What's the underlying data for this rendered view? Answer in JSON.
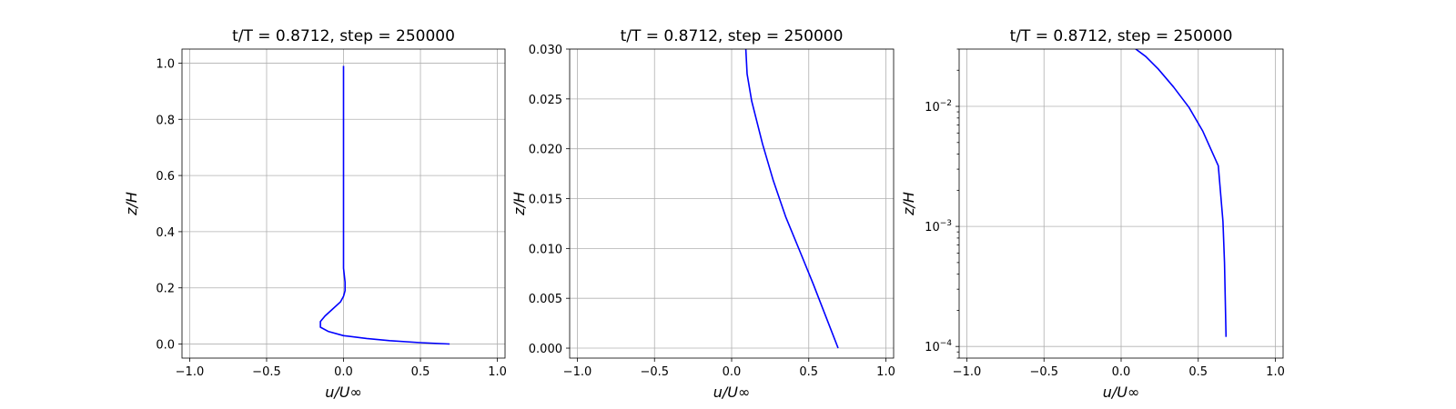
{
  "chart_data": [
    {
      "type": "line",
      "title": "t/T = 0.8712, step = 250000",
      "xlabel": "u/U∞",
      "ylabel": "z/H",
      "xlim": [
        -1.05,
        1.05
      ],
      "ylim": [
        -0.05,
        1.05
      ],
      "yscale": "linear",
      "xticks": [
        -1.0,
        -0.5,
        0.0,
        0.5,
        1.0
      ],
      "xtick_labels": [
        "−1.0",
        "−0.5",
        "0.0",
        "0.5",
        "1.0"
      ],
      "yticks": [
        0.0,
        0.2,
        0.4,
        0.6,
        0.8,
        1.0
      ],
      "ytick_labels": [
        "0.0",
        "0.2",
        "0.4",
        "0.6",
        "0.8",
        "1.0"
      ],
      "grid": true,
      "series": [
        {
          "color": "#0000ff",
          "x": [
            0.69,
            0.5,
            0.3,
            0.15,
            0.0,
            -0.1,
            -0.15,
            -0.15,
            -0.12,
            -0.07,
            -0.02,
            0.0,
            0.01,
            0.01,
            0.0,
            0.0,
            0.0,
            0.0
          ],
          "y": [
            0.0,
            0.005,
            0.012,
            0.02,
            0.03,
            0.045,
            0.06,
            0.08,
            0.1,
            0.125,
            0.15,
            0.17,
            0.19,
            0.22,
            0.27,
            0.35,
            0.6,
            0.99
          ]
        }
      ]
    },
    {
      "type": "line",
      "title": "t/T = 0.8712, step = 250000",
      "xlabel": "u/U∞",
      "ylabel": "z/H",
      "xlim": [
        -1.05,
        1.05
      ],
      "ylim": [
        -0.001,
        0.03
      ],
      "yscale": "linear",
      "xticks": [
        -1.0,
        -0.5,
        0.0,
        0.5,
        1.0
      ],
      "xtick_labels": [
        "−1.0",
        "−0.5",
        "0.0",
        "0.5",
        "1.0"
      ],
      "yticks": [
        0.0,
        0.005,
        0.01,
        0.015,
        0.02,
        0.025,
        0.03
      ],
      "ytick_labels": [
        "0.000",
        "0.005",
        "0.010",
        "0.015",
        "0.020",
        "0.025",
        "0.030"
      ],
      "grid": true,
      "series": [
        {
          "color": "#0000ff",
          "x": [
            0.69,
            0.61,
            0.53,
            0.44,
            0.35,
            0.27,
            0.2,
            0.13,
            0.1,
            0.09
          ],
          "y": [
            0.0,
            0.0032,
            0.0064,
            0.0098,
            0.0132,
            0.0168,
            0.0205,
            0.0248,
            0.0275,
            0.0305
          ]
        }
      ]
    },
    {
      "type": "line",
      "title": "t/T = 0.8712, step = 250000",
      "xlabel": "u/U∞",
      "ylabel": "z/H",
      "xlim": [
        -1.05,
        1.05
      ],
      "ylim": [
        8e-05,
        0.03
      ],
      "yscale": "log",
      "xticks": [
        -1.0,
        -0.5,
        0.0,
        0.5,
        1.0
      ],
      "xtick_labels": [
        "−1.0",
        "−0.5",
        "0.0",
        "0.5",
        "1.0"
      ],
      "yticks": [
        0.0001,
        0.001,
        0.01
      ],
      "ytick_bases": [
        "10",
        "10",
        "10"
      ],
      "ytick_exponents": [
        "−4",
        "−3",
        "−2"
      ],
      "grid": true,
      "series": [
        {
          "color": "#0000ff",
          "x": [
            0.68,
            0.67,
            0.66,
            0.63,
            0.53,
            0.44,
            0.34,
            0.24,
            0.16,
            0.08
          ],
          "y": [
            0.00012,
            0.0005,
            0.0011,
            0.0032,
            0.0062,
            0.0098,
            0.0145,
            0.0205,
            0.026,
            0.031
          ]
        }
      ]
    }
  ]
}
